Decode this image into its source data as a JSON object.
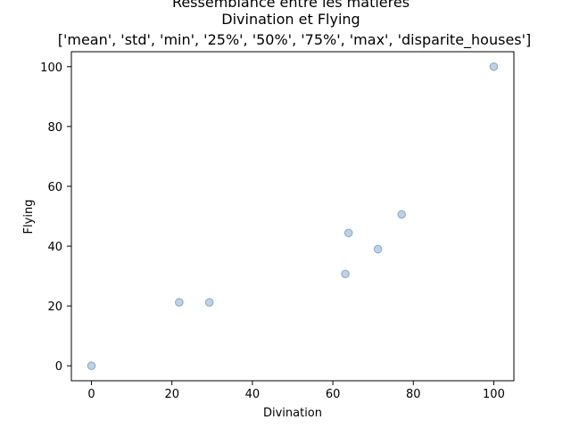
{
  "chart_data": {
    "type": "scatter",
    "title_lines": [
      "Ressemblance entre les matières",
      "Divination et Flying",
      "['mean', 'std', 'min', '25%', '50%', '75%', 'max', 'disparite_houses']"
    ],
    "xlabel": "Divination",
    "ylabel": "Flying",
    "xlim": [
      -5,
      105
    ],
    "ylim": [
      -5,
      105
    ],
    "xticks": [
      0,
      20,
      40,
      60,
      80,
      100
    ],
    "yticks": [
      0,
      20,
      40,
      60,
      80,
      100
    ],
    "grid": false,
    "marker_fill": "#b0c4de",
    "marker_edge": "#4682b4",
    "points": [
      {
        "x": 0,
        "y": 0
      },
      {
        "x": 21.8,
        "y": 21.2
      },
      {
        "x": 29.3,
        "y": 21.2
      },
      {
        "x": 63.1,
        "y": 30.7
      },
      {
        "x": 63.9,
        "y": 44.4
      },
      {
        "x": 71.2,
        "y": 39.0
      },
      {
        "x": 77.1,
        "y": 50.6
      },
      {
        "x": 100,
        "y": 100
      }
    ]
  }
}
